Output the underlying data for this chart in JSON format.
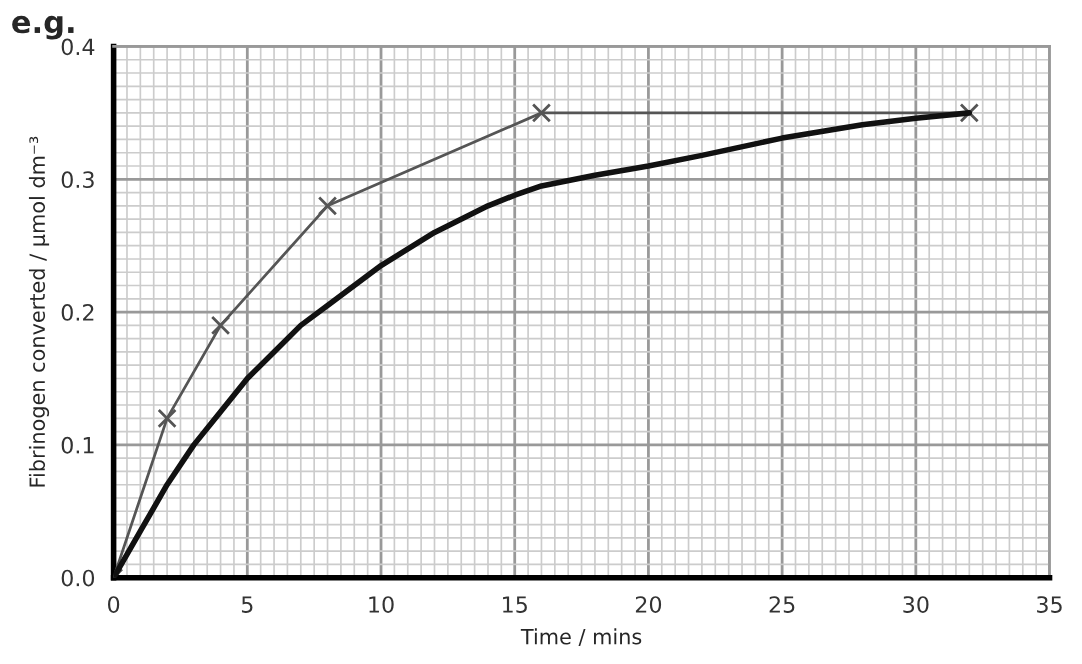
{
  "chart_data": {
    "type": "line",
    "xlabel": "Time / mins",
    "ylabel": "Fibrinogen converted / µmol dm⁻³",
    "annotations": [
      "e.g."
    ],
    "xlim": [
      0,
      35
    ],
    "xticks": [
      0,
      5,
      10,
      15,
      20,
      25,
      30,
      35
    ],
    "ylim": [
      0,
      0.4
    ],
    "yticks": [
      {
        "value": 0,
        "label": "0.0"
      },
      {
        "value": 0.1,
        "label": "0.1"
      },
      {
        "value": 0.2,
        "label": "0.2"
      },
      {
        "value": 0.3,
        "label": "0.3"
      },
      {
        "value": 0.4,
        "label": "0.4"
      }
    ],
    "grid": true,
    "line_style": "solid",
    "series": [
      {
        "color": "#555555",
        "marker": "cross",
        "x": [
          0,
          2,
          4,
          8,
          16,
          32
        ],
        "values": [
          0,
          0.12,
          0.19,
          0.28,
          0.35,
          0.35
        ]
      },
      {
        "color": "#111111",
        "marker": "none",
        "x": [
          0,
          1,
          2,
          3,
          4,
          5,
          6,
          7,
          8,
          10,
          12,
          14,
          15,
          16,
          18,
          20,
          22,
          25,
          28,
          30,
          32
        ],
        "values": [
          0,
          0.035,
          0.07,
          0.1,
          0.125,
          0.15,
          0.17,
          0.19,
          0.205,
          0.235,
          0.26,
          0.28,
          0.288,
          0.295,
          0.303,
          0.31,
          0.318,
          0.331,
          0.341,
          0.346,
          0.35
        ]
      }
    ]
  }
}
